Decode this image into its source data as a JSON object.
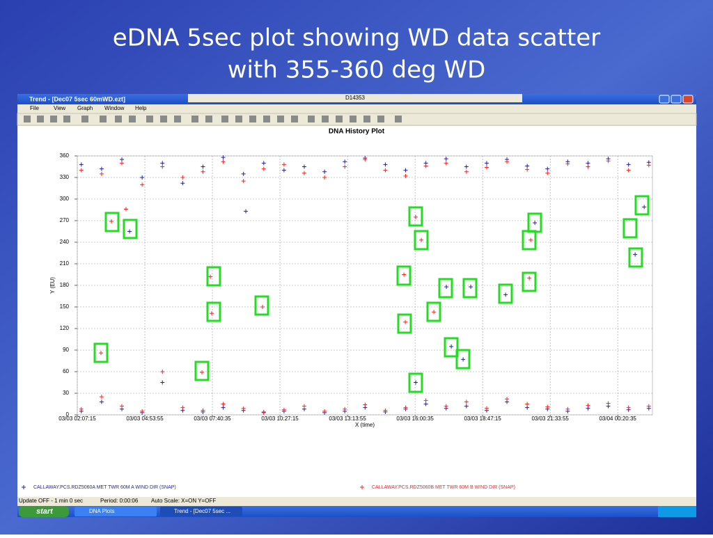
{
  "slide": {
    "title_lines": [
      "eDNA 5sec plot showing WD data scatter",
      "with 355-360 deg WD"
    ]
  },
  "window": {
    "title": "Trend  - [Dec07 5sec 60mWD.ezt]",
    "menus": [
      "File",
      "View",
      "Graph",
      "Window",
      "Help"
    ],
    "tab": "D14353",
    "status": [
      "Update OFF - 1 min 0 sec",
      "Period: 0:00:06",
      "Auto Scale: X=ON  Y=OFF"
    ]
  },
  "taskbar": {
    "start": "start",
    "items": [
      "DNA Plots",
      "Trend  - [Dec07 5sec ..."
    ]
  },
  "chart_data": {
    "type": "scatter",
    "title": "DNA History Plot",
    "x_label": "X (time)",
    "y_label": "Y (EU)",
    "xlim": [
      "03/03 02:07:15",
      "03/04 01:46:10"
    ],
    "xticks": [
      "03/03 02:07:15",
      "03/03 04:53:55",
      "03/03 07:40:35",
      "03/03 10:27:15",
      "03/03 13:13:55",
      "03/03 16:00:35",
      "03/03 18:47:15",
      "03/03 21:33:55",
      "03/04 00:20:35"
    ],
    "ylim": [
      0,
      360
    ],
    "yticks": [
      0,
      30,
      60,
      90,
      120,
      150,
      180,
      210,
      240,
      270,
      300,
      330,
      360
    ],
    "grid": true,
    "series": [
      {
        "name": "CALLAWAY.PCS.RDZ5060A MET TWR 60M A WIND DIR (SNAP)",
        "color": "#1f1fa8",
        "marker": "+",
        "x": [
          "03/03 02:17:15",
          "03/03 03:07:15",
          "03/03 03:57:15",
          "03/03 04:47:15",
          "03/03 05:37:15",
          "03/03 06:27:15",
          "03/03 07:17:15",
          "03/03 08:07:15",
          "03/03 08:57:15",
          "03/03 09:47:15",
          "03/03 10:37:15",
          "03/03 11:27:15",
          "03/03 12:17:15",
          "03/03 13:07:15",
          "03/03 13:57:15",
          "03/03 14:47:15",
          "03/03 15:37:15",
          "03/03 16:27:15",
          "03/03 17:17:15",
          "03/03 18:07:15",
          "03/03 18:57:15",
          "03/03 19:47:15",
          "03/03 20:37:15",
          "03/03 21:27:15",
          "03/03 22:17:15",
          "03/03 23:07:15",
          "03/03 23:57:15",
          "03/04 00:47:15",
          "03/04 01:37:15",
          "03/03 02:17:15",
          "03/03 03:07:15",
          "03/03 03:57:15",
          "03/03 04:47:15",
          "03/03 05:37:15",
          "03/03 06:27:15",
          "03/03 07:17:15",
          "03/03 08:07:15",
          "03/03 08:57:15",
          "03/03 09:47:15",
          "03/03 10:37:15",
          "03/03 11:27:15",
          "03/03 12:17:15",
          "03/03 13:07:15",
          "03/03 13:57:15",
          "03/03 14:47:15",
          "03/03 15:37:15",
          "03/03 16:27:15",
          "03/03 17:17:15",
          "03/03 18:07:15",
          "03/03 18:57:15",
          "03/03 19:47:15",
          "03/03 20:37:15",
          "03/03 21:27:15",
          "03/03 22:17:15",
          "03/03 23:07:15",
          "03/03 23:57:15",
          "03/04 00:47:15",
          "03/04 01:37:15",
          "03/03 04:16:07",
          "03/03 09:03:03",
          "03/03 16:02:17",
          "03/03 17:17:53",
          "03/03 17:29:55",
          "03/03 17:59:07",
          "03/03 18:18:01",
          "03/03 19:43:55",
          "03/03 20:56:05",
          "03/04 01:03:30",
          "03/04 01:25:50"
        ],
        "values": [
          348,
          342,
          355,
          330,
          350,
          322,
          345,
          358,
          335,
          350,
          340,
          345,
          338,
          352,
          357,
          348,
          340,
          350,
          356,
          345,
          350,
          355,
          346,
          342,
          352,
          350,
          356,
          348,
          351,
          5,
          18,
          8,
          3,
          45,
          6,
          4,
          10,
          6,
          3,
          5,
          8,
          3,
          5,
          10,
          4,
          8,
          15,
          9,
          12,
          6,
          18,
          10,
          8,
          5,
          9,
          12,
          7,
          9,
          255,
          283,
          45,
          178,
          95,
          77,
          178,
          167,
          267,
          223,
          289
        ]
      },
      {
        "name": "CALLAWAY.PCS.RDZ5060B MET TWR 60M B WIND DIR (SNAP)",
        "color": "#ff2020",
        "marker": "+",
        "x": [
          "03/03 02:17:15",
          "03/03 03:07:15",
          "03/03 03:57:15",
          "03/03 04:47:15",
          "03/03 05:37:15",
          "03/03 06:27:15",
          "03/03 07:17:15",
          "03/03 08:07:15",
          "03/03 08:57:15",
          "03/03 09:47:15",
          "03/03 10:37:15",
          "03/03 11:27:15",
          "03/03 12:17:15",
          "03/03 13:07:15",
          "03/03 13:57:15",
          "03/03 14:47:15",
          "03/03 15:37:15",
          "03/03 16:27:15",
          "03/03 17:17:15",
          "03/03 18:07:15",
          "03/03 18:57:15",
          "03/03 19:47:15",
          "03/03 20:37:15",
          "03/03 21:27:15",
          "03/03 22:17:15",
          "03/03 23:07:15",
          "03/03 23:57:15",
          "03/04 00:47:15",
          "03/04 01:37:15",
          "03/03 02:17:15",
          "03/03 03:07:15",
          "03/03 03:57:15",
          "03/03 04:47:15",
          "03/03 05:37:15",
          "03/03 06:27:15",
          "03/03 07:17:15",
          "03/03 08:07:15",
          "03/03 08:57:15",
          "03/03 09:47:15",
          "03/03 10:37:15",
          "03/03 11:27:15",
          "03/03 12:17:15",
          "03/03 13:07:15",
          "03/03 13:57:15",
          "03/03 14:47:15",
          "03/03 15:37:15",
          "03/03 16:27:15",
          "03/03 17:17:15",
          "03/03 18:07:15",
          "03/03 18:57:15",
          "03/03 19:47:15",
          "03/03 20:37:15",
          "03/03 21:27:15",
          "03/03 22:17:15",
          "03/03 23:07:15",
          "03/03 23:57:15",
          "03/04 00:47:15",
          "03/04 01:37:15",
          "03/03 03:31:26",
          "03/03 03:05:40",
          "03/03 04:07:31",
          "03/03 07:35:25",
          "03/03 07:38:51",
          "03/03 07:14:48",
          "03/03 09:44:17",
          "03/03 15:33:04",
          "03/03 15:36:30",
          "03/03 16:02:17",
          "03/03 16:16:02",
          "03/03 16:46:57",
          "03/03 20:42:20",
          "03/03 20:45:46"
        ],
        "values": [
          340,
          335,
          350,
          320,
          345,
          330,
          338,
          352,
          325,
          342,
          348,
          336,
          330,
          345,
          355,
          340,
          332,
          346,
          350,
          338,
          344,
          352,
          341,
          336,
          349,
          345,
          353,
          340,
          347,
          8,
          25,
          12,
          5,
          60,
          10,
          6,
          15,
          9,
          4,
          7,
          12,
          5,
          8,
          14,
          6,
          10,
          20,
          12,
          18,
          9,
          22,
          15,
          11,
          8,
          13,
          16,
          10,
          12,
          269,
          86,
          286,
          192,
          141,
          59,
          150,
          195,
          129,
          275,
          243,
          143,
          190,
          243
        ]
      }
    ]
  }
}
